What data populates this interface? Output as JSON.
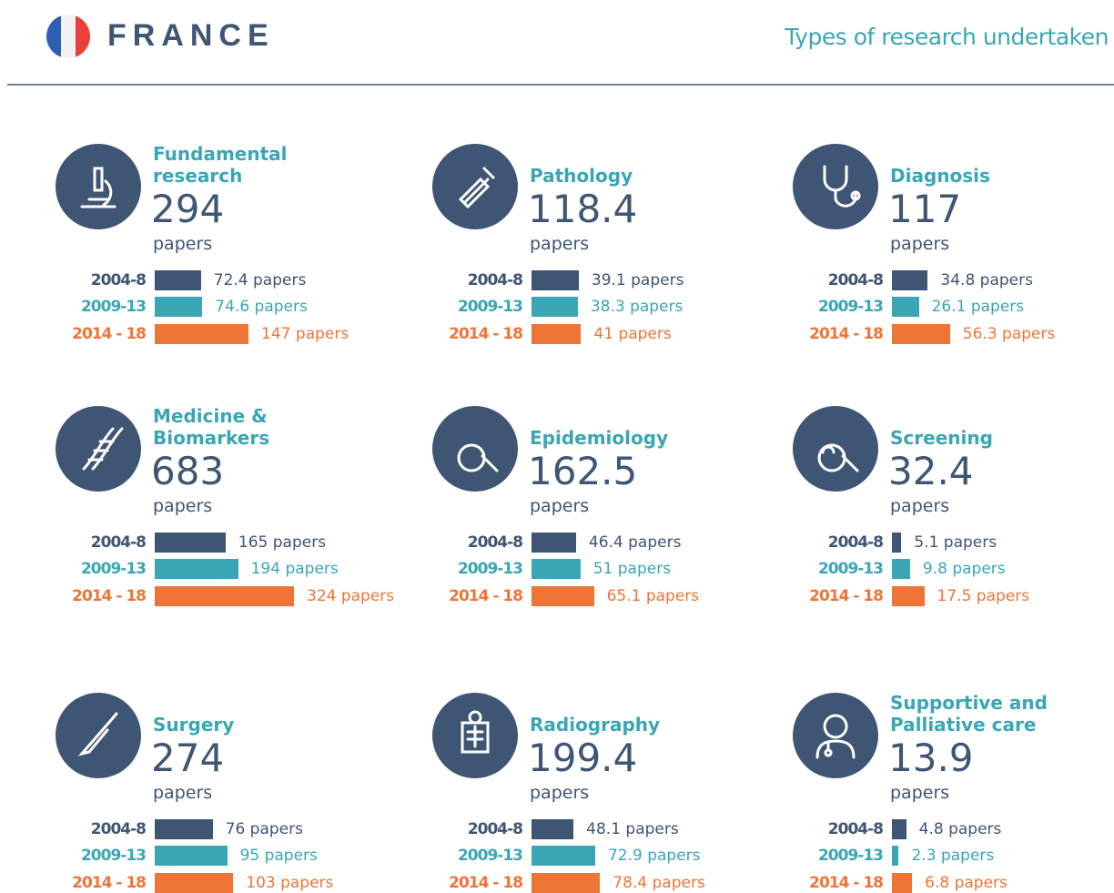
{
  "header": {
    "country": "FRANCE",
    "subtitle": "Types of research undertaken"
  },
  "chart_data": [
    {
      "type": "bar",
      "title": "Fundamental research",
      "total": 294,
      "unit": "papers",
      "categories": [
        "2004-8",
        "2009-13",
        "2014 - 18"
      ],
      "colors": [
        "#3f5574",
        "#3aa6b5",
        "#ef7536"
      ],
      "values": [
        72.4,
        74.6,
        147
      ],
      "value_labels": [
        "72.4 papers",
        "74.6 papers",
        "147  papers"
      ]
    },
    {
      "type": "bar",
      "title": "Pathology",
      "total": 118.4,
      "unit": "papers",
      "categories": [
        "2004-8",
        "2009-13",
        "2014 - 18"
      ],
      "colors": [
        "#3f5574",
        "#3aa6b5",
        "#ef7536"
      ],
      "values": [
        39.1,
        38.3,
        41
      ],
      "value_labels": [
        "39.1 papers",
        "38.3 papers",
        "41 papers"
      ]
    },
    {
      "type": "bar",
      "title": "Diagnosis",
      "total": 117,
      "unit": "papers",
      "categories": [
        "2004-8",
        "2009-13",
        "2014 - 18"
      ],
      "colors": [
        "#3f5574",
        "#3aa6b5",
        "#ef7536"
      ],
      "values": [
        34.8,
        26.1,
        56.3
      ],
      "value_labels": [
        "34.8 papers",
        "26.1 papers",
        "56.3 papers"
      ]
    },
    {
      "type": "bar",
      "title": "Medicine & Biomarkers",
      "total": 683,
      "unit": "papers",
      "categories": [
        "2004-8",
        "2009-13",
        "2014 - 18"
      ],
      "colors": [
        "#3f5574",
        "#3aa6b5",
        "#ef7536"
      ],
      "values": [
        165,
        194,
        324
      ],
      "value_labels": [
        "165 papers",
        "194 papers",
        "324 papers"
      ]
    },
    {
      "type": "bar",
      "title": "Epidemiology",
      "total": 162.5,
      "unit": "papers",
      "categories": [
        "2004-8",
        "2009-13",
        "2014 - 18"
      ],
      "colors": [
        "#3f5574",
        "#3aa6b5",
        "#ef7536"
      ],
      "values": [
        46.4,
        51,
        65.1
      ],
      "value_labels": [
        "46.4 papers",
        "51 papers",
        "65.1 papers"
      ]
    },
    {
      "type": "bar",
      "title": "Screening",
      "total": 32.4,
      "unit": "papers",
      "categories": [
        "2004-8",
        "2009-13",
        "2014 - 18"
      ],
      "colors": [
        "#3f5574",
        "#3aa6b5",
        "#ef7536"
      ],
      "values": [
        5.1,
        9.8,
        17.5
      ],
      "value_labels": [
        "5.1 papers",
        "9.8 papers",
        "17.5 papers"
      ]
    },
    {
      "type": "bar",
      "title": "Surgery",
      "total": 274,
      "unit": "papers",
      "categories": [
        "2004-8",
        "2009-13",
        "2014 - 18"
      ],
      "colors": [
        "#3f5574",
        "#3aa6b5",
        "#ef7536"
      ],
      "values": [
        76,
        95,
        103
      ],
      "value_labels": [
        "76 papers",
        "95 papers",
        "103 papers"
      ]
    },
    {
      "type": "bar",
      "title": "Radiography",
      "total": 199.4,
      "unit": "papers",
      "categories": [
        "2004-8",
        "2009-13",
        "2014 - 18"
      ],
      "colors": [
        "#3f5574",
        "#3aa6b5",
        "#ef7536"
      ],
      "values": [
        48.1,
        72.9,
        78.4
      ],
      "value_labels": [
        "48.1 papers",
        "72.9 papers",
        "78.4 papers"
      ]
    },
    {
      "type": "bar",
      "title": "Supportive and Palliative care",
      "total": 13.9,
      "unit": "papers",
      "categories": [
        "2004-8",
        "2009-13",
        "2014 - 18"
      ],
      "colors": [
        "#3f5574",
        "#3aa6b5",
        "#ef7536"
      ],
      "values": [
        4.8,
        2.3,
        6.8
      ],
      "value_labels": [
        "4.8 papers",
        "2.3 papers",
        "6.8 papers"
      ]
    }
  ]
}
